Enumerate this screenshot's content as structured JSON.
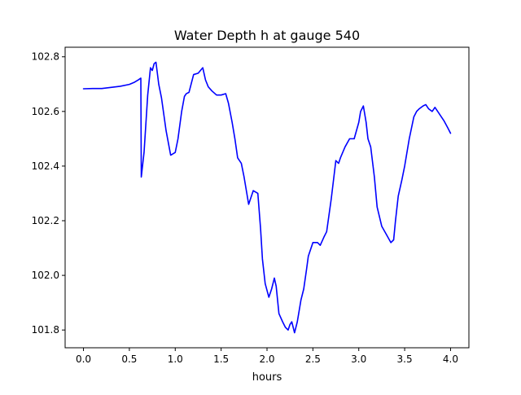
{
  "chart_data": {
    "type": "line",
    "title": "Water Depth h at gauge 540",
    "xlabel": "hours",
    "ylabel": "",
    "xlim": [
      -0.2,
      4.2
    ],
    "ylim": [
      101.735,
      102.835
    ],
    "x_ticks": [
      0.0,
      0.5,
      1.0,
      1.5,
      2.0,
      2.5,
      3.0,
      3.5,
      4.0
    ],
    "x_tick_labels": [
      "0.0",
      "0.5",
      "1.0",
      "1.5",
      "2.0",
      "2.5",
      "3.0",
      "3.5",
      "4.0"
    ],
    "y_ticks": [
      101.8,
      102.0,
      102.2,
      102.4,
      102.6,
      102.8
    ],
    "y_tick_labels": [
      "101.8",
      "102.0",
      "102.2",
      "102.4",
      "102.6",
      "102.8"
    ],
    "grid": false,
    "series": [
      {
        "color": "#0000ff",
        "x": [
          0.0,
          0.1,
          0.2,
          0.3,
          0.4,
          0.5,
          0.55,
          0.6,
          0.625,
          0.63,
          0.66,
          0.7,
          0.73,
          0.75,
          0.77,
          0.79,
          0.82,
          0.85,
          0.9,
          0.95,
          1.0,
          1.03,
          1.07,
          1.1,
          1.12,
          1.15,
          1.2,
          1.25,
          1.3,
          1.33,
          1.36,
          1.4,
          1.45,
          1.5,
          1.55,
          1.58,
          1.62,
          1.65,
          1.68,
          1.72,
          1.75,
          1.8,
          1.85,
          1.9,
          1.93,
          1.95,
          1.98,
          2.02,
          2.05,
          2.08,
          2.1,
          2.13,
          2.17,
          2.2,
          2.23,
          2.25,
          2.27,
          2.3,
          2.33,
          2.37,
          2.4,
          2.43,
          2.45,
          2.48,
          2.5,
          2.55,
          2.58,
          2.62,
          2.65,
          2.7,
          2.75,
          2.78,
          2.8,
          2.85,
          2.9,
          2.95,
          3.0,
          3.02,
          3.05,
          3.08,
          3.1,
          3.13,
          3.17,
          3.2,
          3.25,
          3.3,
          3.35,
          3.38,
          3.4,
          3.43,
          3.47,
          3.5,
          3.55,
          3.6,
          3.63,
          3.66,
          3.7,
          3.73,
          3.76,
          3.8,
          3.83,
          3.86,
          3.9,
          3.93,
          3.97,
          4.0
        ],
        "y": [
          102.683,
          102.684,
          102.684,
          102.688,
          102.692,
          102.699,
          102.706,
          102.716,
          102.722,
          102.36,
          102.45,
          102.66,
          102.76,
          102.75,
          102.775,
          102.78,
          102.7,
          102.65,
          102.53,
          102.44,
          102.45,
          102.5,
          102.6,
          102.655,
          102.665,
          102.67,
          102.735,
          102.74,
          102.76,
          102.715,
          102.69,
          102.675,
          102.66,
          102.66,
          102.665,
          102.63,
          102.56,
          102.5,
          102.43,
          102.41,
          102.36,
          102.26,
          102.31,
          102.3,
          102.17,
          102.06,
          101.97,
          101.92,
          101.95,
          101.99,
          101.96,
          101.86,
          101.83,
          101.81,
          101.8,
          101.82,
          101.83,
          101.79,
          101.83,
          101.91,
          101.95,
          102.02,
          102.07,
          102.1,
          102.12,
          102.12,
          102.11,
          102.14,
          102.16,
          102.28,
          102.42,
          102.41,
          102.43,
          102.47,
          102.5,
          102.5,
          102.56,
          102.6,
          102.62,
          102.56,
          102.5,
          102.47,
          102.36,
          102.25,
          102.18,
          102.15,
          102.12,
          102.13,
          102.2,
          102.29,
          102.35,
          102.4,
          102.5,
          102.58,
          102.6,
          102.61,
          102.62,
          102.625,
          102.61,
          102.6,
          102.615,
          102.6,
          102.58,
          102.565,
          102.54,
          102.52
        ]
      }
    ]
  }
}
